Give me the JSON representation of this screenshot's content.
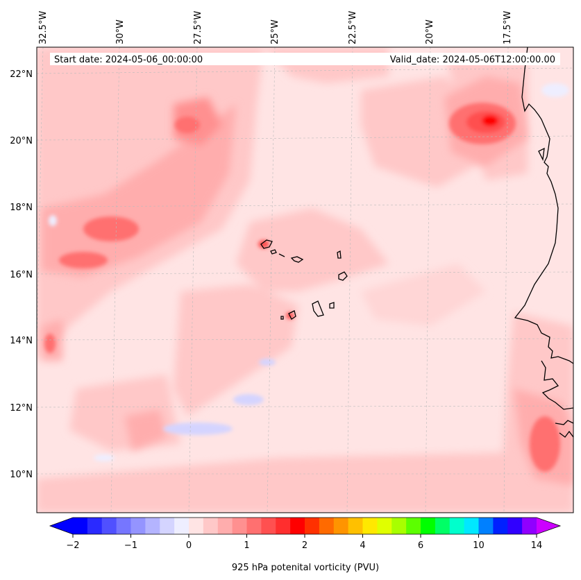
{
  "map": {
    "start_date": "Start date: 2024-05-06_00:00:00",
    "valid_date": "Valid_date: 2024-05-06T12:00:00.00",
    "lon_labels": [
      "32.5°W",
      "30°W",
      "27.5°W",
      "25°W",
      "22.5°W",
      "20°W",
      "17.5°W"
    ],
    "lat_labels": [
      "22°N",
      "20°N",
      "18°N",
      "16°N",
      "14°N",
      "12°N",
      "10°N"
    ]
  },
  "colorbar": {
    "title": "925 hPa potenital vorticity (PVU)",
    "tick_labels": [
      "−2",
      "−1",
      "0",
      "1",
      "2",
      "4",
      "6",
      "10",
      "14"
    ],
    "tick_values": [
      -2,
      -1,
      0,
      1,
      2,
      4,
      6,
      10,
      14
    ],
    "colors": [
      "#0000ff",
      "#2a2aff",
      "#5050ff",
      "#7676ff",
      "#9494ff",
      "#b4b4ff",
      "#d4d4ff",
      "#eeeeff",
      "#ffe4e4",
      "#ffc8c8",
      "#ffadad",
      "#ff9090",
      "#ff7070",
      "#ff5050",
      "#ff2e2e",
      "#ff0000",
      "#ff3000",
      "#ff6a00",
      "#ff9400",
      "#ffc000",
      "#ffe800",
      "#e0ff00",
      "#a8ff00",
      "#5cff00",
      "#00ff00",
      "#00ff66",
      "#00ffcc",
      "#00e8ff",
      "#0080ff",
      "#0020ff",
      "#3000ff",
      "#9000ff"
    ],
    "under_color": "#0000ff",
    "over_color": "#cc00ff"
  }
}
